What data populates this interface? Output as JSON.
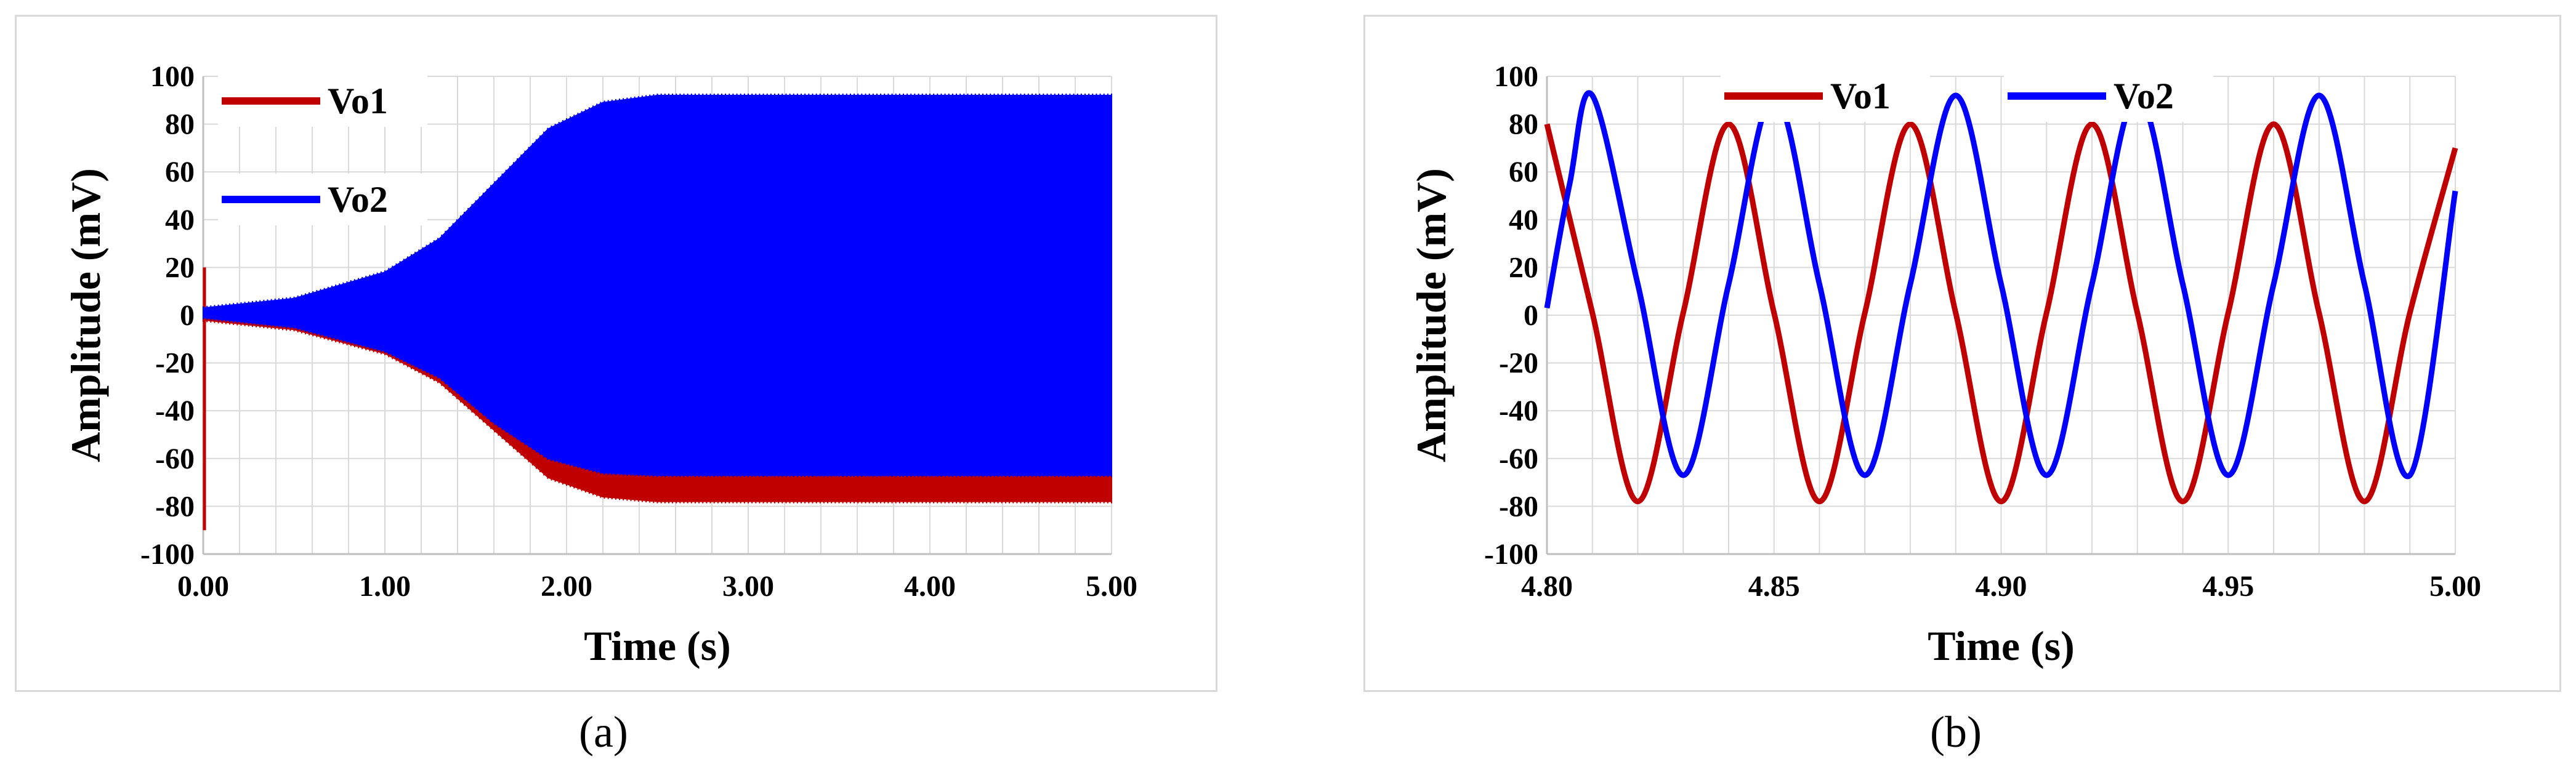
{
  "captions": [
    "(a)",
    "(b)"
  ],
  "colors": {
    "vo1": "#C00000",
    "vo2": "#0000FF",
    "grid": "#d9d9d9",
    "axis": "#bfbfbf"
  },
  "chart_data": [
    {
      "id": "a",
      "type": "line",
      "xlabel": "Time (s)",
      "ylabel": "Amplitude (mV)",
      "xlim": [
        0,
        5
      ],
      "ylim": [
        -100,
        100
      ],
      "x_ticks": [
        "0.00",
        "1.00",
        "2.00",
        "3.00",
        "4.00",
        "5.00"
      ],
      "x_tick_values": [
        0,
        1,
        2,
        3,
        4,
        5
      ],
      "y_ticks": [
        "100",
        "80",
        "60",
        "40",
        "20",
        "0",
        "-20",
        "-40",
        "-60",
        "-80",
        "-100"
      ],
      "y_tick_values": [
        100,
        80,
        60,
        40,
        20,
        0,
        -20,
        -40,
        -60,
        -80,
        -100
      ],
      "grid": true,
      "legend_position": "top-left",
      "rendering": "dense oscillation envelope",
      "series": [
        {
          "name": "Vo1",
          "color": "#C00000",
          "envelope_time": [
            0,
            0.5,
            1.0,
            1.3,
            1.6,
            1.9,
            2.2,
            2.5,
            3.0,
            4.0,
            5.0
          ],
          "envelope_upper": [
            2,
            6,
            16,
            28,
            48,
            68,
            78,
            80,
            80,
            80,
            80
          ],
          "envelope_lower": [
            -2,
            -6,
            -16,
            -28,
            -48,
            -68,
            -76,
            -78,
            -78,
            -78,
            -78
          ],
          "start_transient": [
            20,
            -90
          ],
          "end_transient": [
            80,
            -70
          ]
        },
        {
          "name": "Vo2",
          "color": "#0000FF",
          "envelope_time": [
            0,
            0.5,
            1.0,
            1.3,
            1.6,
            1.9,
            2.2,
            2.5,
            3.0,
            4.0,
            5.0
          ],
          "envelope_upper": [
            3,
            7,
            18,
            32,
            55,
            78,
            89,
            92,
            92,
            92,
            92
          ],
          "envelope_lower": [
            -1,
            -5,
            -15,
            -26,
            -45,
            -60,
            -66,
            -67,
            -67,
            -67,
            -67
          ]
        }
      ]
    },
    {
      "id": "b",
      "type": "line",
      "xlabel": "Time (s)",
      "ylabel": "Amplitude (mV)",
      "xlim": [
        4.8,
        5.0
      ],
      "ylim": [
        -100,
        100
      ],
      "x_ticks": [
        "4.80",
        "4.85",
        "4.90",
        "4.95",
        "5.00"
      ],
      "x_tick_values": [
        4.8,
        4.85,
        4.9,
        4.95,
        5.0
      ],
      "y_ticks": [
        "100",
        "80",
        "60",
        "40",
        "20",
        "0",
        "-20",
        "-40",
        "-60",
        "-80",
        "-100"
      ],
      "y_tick_values": [
        100,
        80,
        60,
        40,
        20,
        0,
        -20,
        -40,
        -60,
        -80,
        -100
      ],
      "grid": true,
      "legend_position": "top-center",
      "series": [
        {
          "name": "Vo1",
          "color": "#C00000",
          "x": [
            4.8,
            4.81,
            4.82,
            4.83,
            4.84,
            4.85,
            4.86,
            4.87,
            4.88,
            4.89,
            4.9,
            4.91,
            4.92,
            4.93,
            4.94,
            4.95,
            4.96,
            4.97,
            4.98,
            4.99,
            5.0
          ],
          "y": [
            80,
            1,
            -78,
            1,
            80,
            1,
            -78,
            1,
            80,
            1,
            -78,
            1,
            80,
            1,
            -78,
            1,
            80,
            1,
            -78,
            1,
            70
          ]
        },
        {
          "name": "Vo2",
          "color": "#0000FF",
          "x": [
            4.8,
            4.805,
            4.81,
            4.82,
            4.83,
            4.84,
            4.85,
            4.86,
            4.87,
            4.88,
            4.89,
            4.9,
            4.91,
            4.92,
            4.93,
            4.94,
            4.95,
            4.96,
            4.97,
            4.98,
            4.99,
            5.0
          ],
          "y": [
            3,
            55,
            92,
            13,
            -67,
            13,
            92,
            13,
            -67,
            13,
            92,
            13,
            -67,
            13,
            92,
            13,
            -67,
            13,
            92,
            13,
            -67,
            52
          ]
        }
      ]
    }
  ]
}
